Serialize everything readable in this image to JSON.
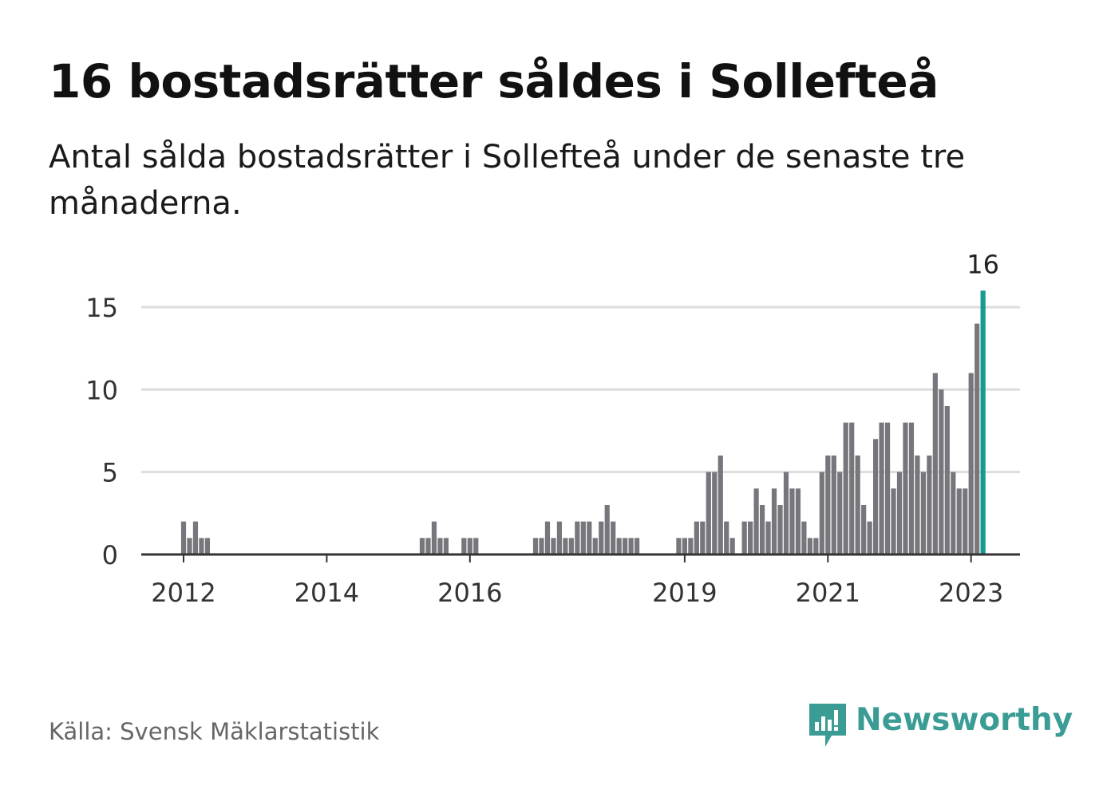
{
  "title": "16 bostadsrätter såldes i Sollefteå",
  "subtitle": "Antal sålda bostadsrätter i Sollefteå under de senaste tre månaderna.",
  "source": "Källa: Svensk Mäklarstatistik",
  "brand": {
    "name": "Newsworthy",
    "icon": "newsworthy-logo-icon",
    "color": "#3a9c95"
  },
  "colors": {
    "bar": "#76767c",
    "highlight": "#179a8f",
    "grid": "#dddddd",
    "axis": "#333333"
  },
  "chart_data": {
    "type": "bar",
    "title": "16 bostadsrätter såldes i Sollefteå",
    "xlabel": "",
    "ylabel": "",
    "ylim": [
      0,
      16
    ],
    "yticks": [
      0,
      5,
      10,
      15
    ],
    "grid": true,
    "x_tick_labels": [
      {
        "label": "2012",
        "index": 0
      },
      {
        "label": "2014",
        "index": 24
      },
      {
        "label": "2016",
        "index": 48
      },
      {
        "label": "2019",
        "index": 84
      },
      {
        "label": "2021",
        "index": 108
      },
      {
        "label": "2023",
        "index": 132
      }
    ],
    "start": "2012-01",
    "values": [
      2,
      1,
      2,
      1,
      1,
      0,
      0,
      0,
      0,
      0,
      0,
      0,
      0,
      0,
      0,
      0,
      0,
      0,
      0,
      0,
      0,
      0,
      0,
      0,
      0,
      0,
      0,
      0,
      0,
      0,
      0,
      0,
      0,
      0,
      0,
      0,
      0,
      0,
      0,
      0,
      1,
      1,
      2,
      1,
      1,
      0,
      0,
      1,
      1,
      1,
      0,
      0,
      0,
      0,
      0,
      0,
      0,
      0,
      0,
      1,
      1,
      2,
      1,
      2,
      1,
      1,
      2,
      2,
      2,
      1,
      2,
      3,
      2,
      1,
      1,
      1,
      1,
      0,
      0,
      0,
      0,
      0,
      0,
      1,
      1,
      1,
      2,
      2,
      5,
      5,
      6,
      2,
      1,
      0,
      2,
      2,
      4,
      3,
      2,
      4,
      3,
      5,
      4,
      4,
      2,
      1,
      1,
      5,
      6,
      6,
      5,
      8,
      8,
      6,
      3,
      2,
      7,
      8,
      8,
      4,
      5,
      8,
      8,
      6,
      5,
      6,
      11,
      10,
      9,
      5,
      4,
      4,
      11,
      14,
      16
    ],
    "highlight": {
      "index": 134,
      "value": 16,
      "label": "16"
    }
  }
}
